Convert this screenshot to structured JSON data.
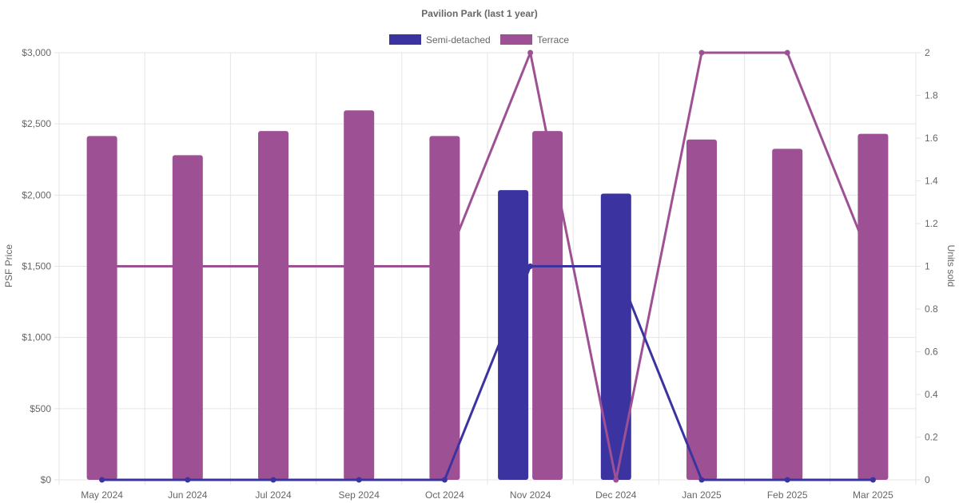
{
  "chart_data": {
    "type": "bar",
    "title": "Pavilion Park (last 1 year)",
    "categories": [
      "May 2024",
      "Jun 2024",
      "Jul 2024",
      "Sep 2024",
      "Oct 2024",
      "Nov 2024",
      "Dec 2024",
      "Jan 2025",
      "Feb 2025",
      "Mar 2025"
    ],
    "ylabel": "PSF Price",
    "y2label": "Units sold",
    "ylim": [
      0,
      3000
    ],
    "y2lim": [
      0,
      2
    ],
    "yticks": [
      "$0",
      "$500",
      "$1,000",
      "$1,500",
      "$2,000",
      "$2,500",
      "$3,000"
    ],
    "y2ticks": [
      "0",
      "0.2",
      "0.4",
      "0.6",
      "0.8",
      "1",
      "1.2",
      "1.4",
      "1.6",
      "1.8",
      "2"
    ],
    "grid": true,
    "legend_position": "top",
    "series": [
      {
        "name": "Semi-detached",
        "color": "#3a33a0",
        "bar_values": [
          null,
          null,
          null,
          null,
          null,
          2035,
          2010,
          null,
          null,
          null
        ],
        "units_sold": [
          0,
          0,
          0,
          0,
          0,
          1,
          1,
          0,
          0,
          0
        ]
      },
      {
        "name": "Terrace",
        "color": "#9e5095",
        "bar_values": [
          2415,
          2280,
          2450,
          2595,
          2415,
          2450,
          null,
          2390,
          2325,
          2430
        ],
        "units_sold": [
          1,
          1,
          1,
          1,
          1,
          2,
          0,
          2,
          2,
          1
        ]
      }
    ]
  }
}
